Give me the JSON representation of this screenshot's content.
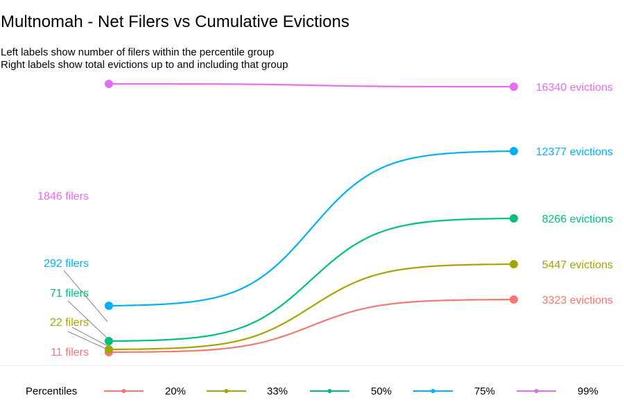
{
  "title": "Multnomah - Net Filers vs Cumulative Evictions",
  "subtitle": [
    "Left labels show number of filers within the percentile group",
    "Right labels show total evictions up to and including that group"
  ],
  "legend": {
    "title": "Percentiles"
  },
  "chart_data": {
    "type": "line",
    "description_free": true,
    "series": [
      {
        "name": "20%",
        "color": "#F8766D",
        "left_label": "11 filers",
        "right_label": "3323 evictions"
      },
      {
        "name": "33%",
        "color": "#A3A500",
        "left_label": "22 filers",
        "right_label": "5447 evictions"
      },
      {
        "name": "50%",
        "color": "#00BF7D",
        "left_label": "71 filers",
        "right_label": "8266 evictions"
      },
      {
        "name": "75%",
        "color": "#00B0F6",
        "left_label": "292 filers",
        "right_label": "12377 evictions"
      },
      {
        "name": "99%",
        "color": "#E76BF3",
        "left_label": "1846 filers",
        "right_label": "16340 evictions"
      }
    ],
    "values": {
      "20%": {
        "filers": 11,
        "evictions": 3323
      },
      "33%": {
        "filers": 22,
        "evictions": 5447
      },
      "50%": {
        "filers": 71,
        "evictions": 8266
      },
      "75%": {
        "filers": 292,
        "evictions": 12377
      },
      "99%": {
        "filers": 1846,
        "evictions": 16340
      }
    },
    "grid": false,
    "legend_position": "bottom"
  }
}
